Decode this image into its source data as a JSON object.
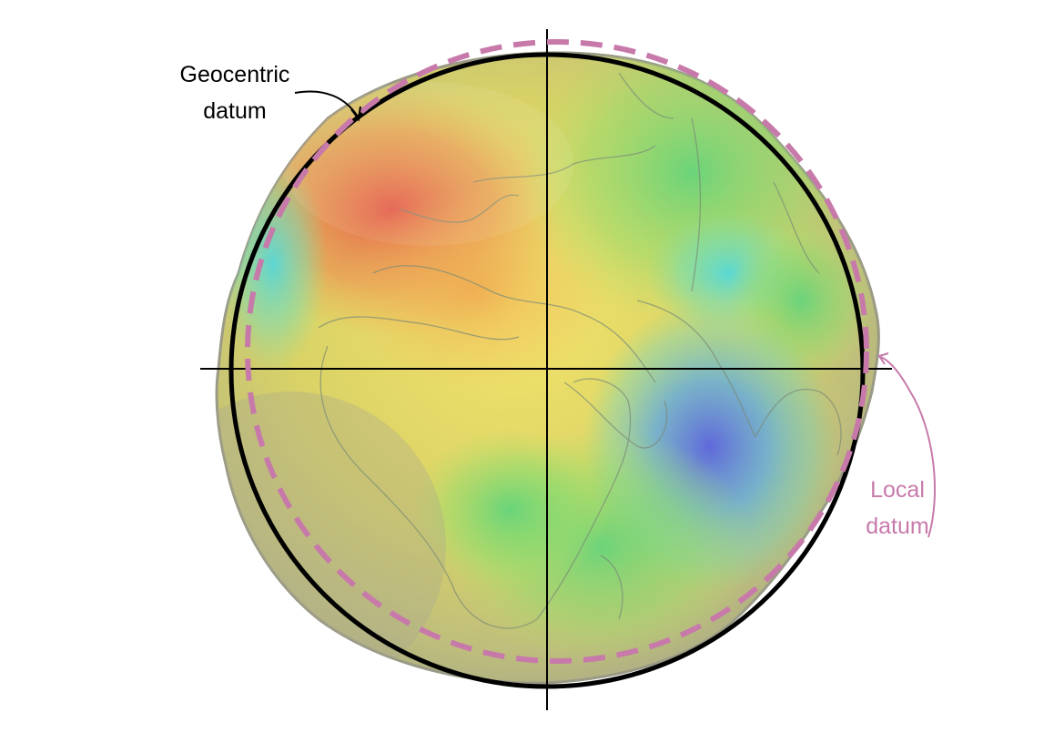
{
  "labels": {
    "geocentric": {
      "line1": "Geocentric",
      "line2": "datum"
    },
    "local": {
      "line1": "Local",
      "line2": "datum"
    }
  },
  "colors": {
    "geocentric_datum": "#000000",
    "local_datum": "#c77aaa",
    "axis": "#000000"
  },
  "icons": {
    "globe": "geoid-globe-icon"
  }
}
